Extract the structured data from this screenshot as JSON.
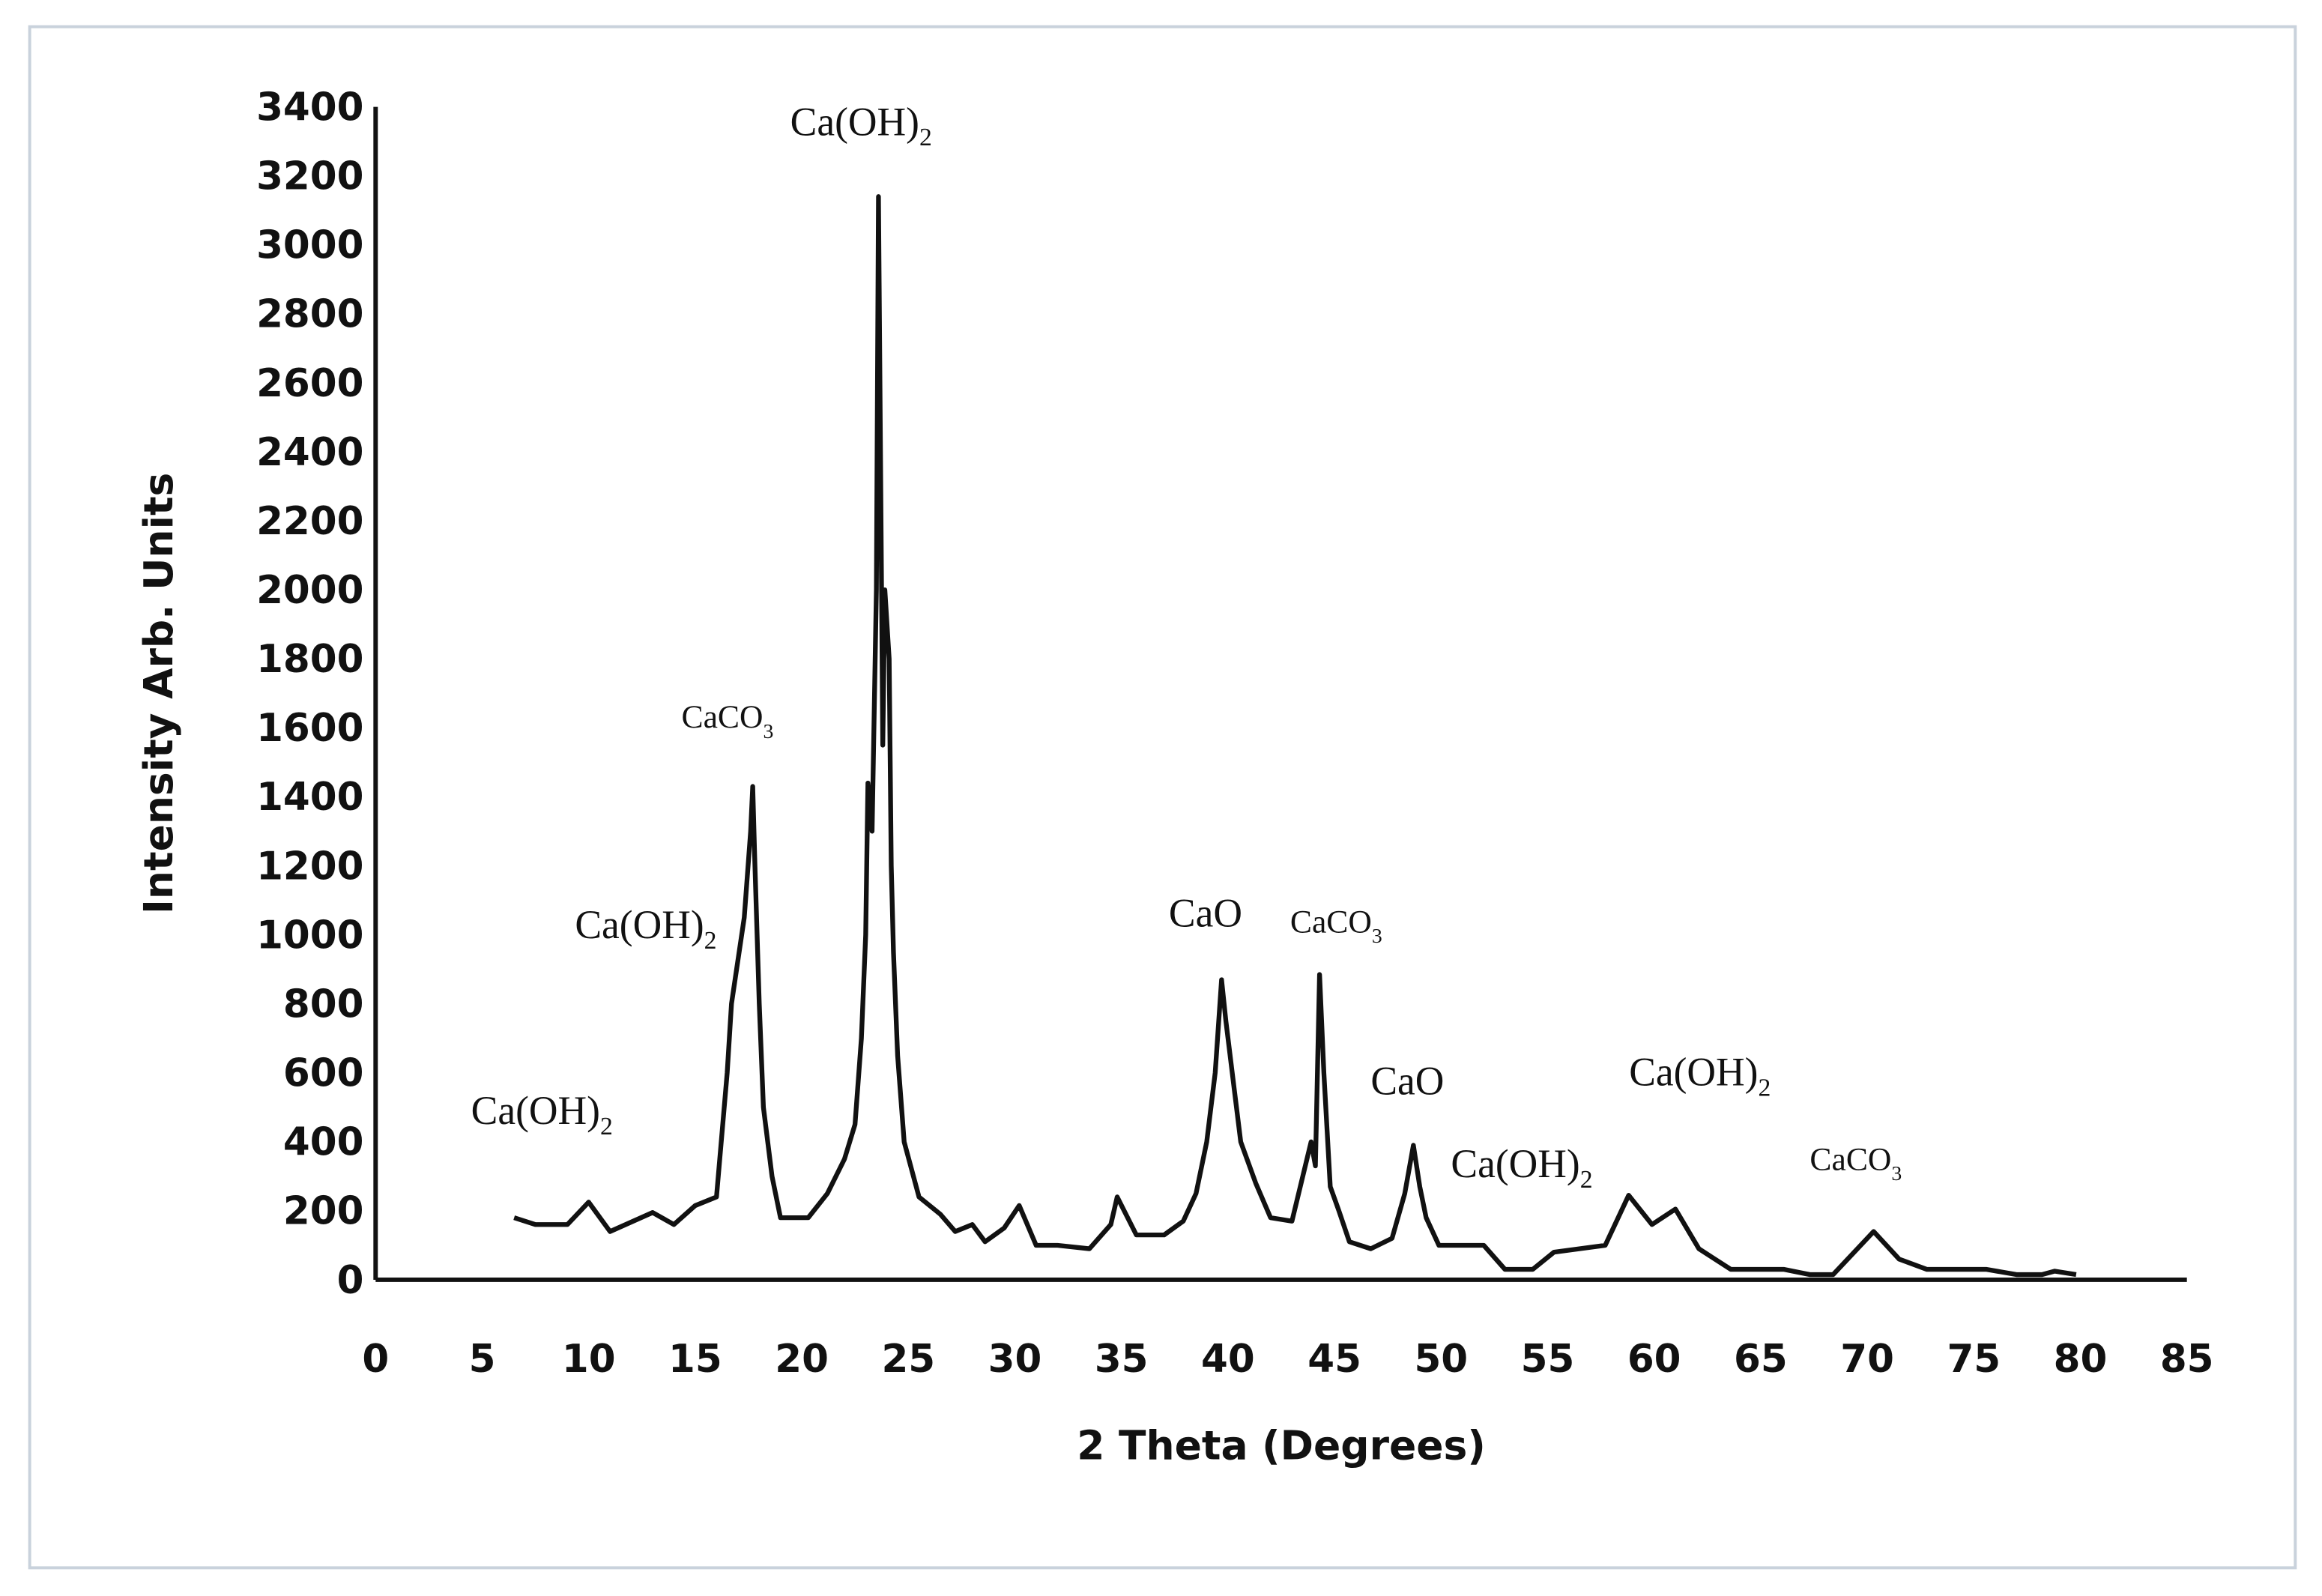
{
  "chart_data": {
    "type": "line",
    "xlabel": "2 Theta (Degrees)",
    "ylabel": "Intensity Arb. Units",
    "color": "#111111",
    "x": [
      6.5,
      7.5,
      9,
      10,
      11,
      13,
      14,
      15,
      16,
      16.5,
      16.7,
      17.3,
      17.6,
      17.7,
      17.8,
      18,
      18.2,
      18.6,
      19,
      20.3,
      21.2,
      22,
      22.5,
      22.8,
      23,
      23.1,
      23.3,
      23.5,
      23.6,
      23.8,
      23.9,
      24.1,
      24.2,
      24.3,
      24.5,
      24.8,
      25.5,
      26.5,
      27.2,
      28,
      28.6,
      29.5,
      30.2,
      31,
      32,
      33.5,
      34.5,
      34.8,
      35.7,
      37,
      37.9,
      38.5,
      39,
      39.4,
      39.7,
      39.9,
      40.3,
      40.6,
      41.3,
      42,
      43,
      43.9,
      44.1,
      44.3,
      44.5,
      44.8,
      45.2,
      45.7,
      46.7,
      47.7,
      48.3,
      48.7,
      49,
      49.3,
      49.9,
      52,
      53,
      54.3,
      55.3,
      57.7,
      58.8,
      59.9,
      61,
      62.1,
      63.6,
      66.1,
      67.3,
      68.4,
      70.3,
      71.5,
      72.8,
      75.6,
      77,
      78.2,
      78.8,
      79.8
    ],
    "values": [
      180,
      160,
      160,
      225,
      140,
      195,
      160,
      215,
      240,
      600,
      800,
      1050,
      1300,
      1430,
      1200,
      800,
      500,
      300,
      180,
      180,
      250,
      350,
      450,
      700,
      1000,
      1440,
      1300,
      2000,
      3140,
      1550,
      2000,
      1800,
      1200,
      950,
      650,
      400,
      240,
      190,
      140,
      160,
      110,
      150,
      215,
      100,
      100,
      90,
      160,
      240,
      130,
      130,
      170,
      250,
      400,
      600,
      870,
      750,
      550,
      400,
      280,
      180,
      170,
      400,
      330,
      885,
      600,
      270,
      200,
      110,
      90,
      120,
      250,
      390,
      270,
      180,
      100,
      100,
      30,
      30,
      80,
      100,
      245,
      160,
      205,
      90,
      30,
      30,
      15,
      15,
      140,
      60,
      30,
      30,
      15,
      15,
      25,
      15
    ],
    "xlim": [
      0,
      85
    ],
    "ylim": [
      0,
      3400
    ],
    "xticks": [
      0,
      5,
      10,
      15,
      20,
      25,
      30,
      35,
      40,
      45,
      50,
      55,
      60,
      65,
      70,
      75,
      80,
      85
    ],
    "yticks": [
      0,
      200,
      400,
      600,
      800,
      1000,
      1200,
      1400,
      1600,
      1800,
      2000,
      2200,
      2400,
      2600,
      2800,
      3000,
      3200,
      3400
    ],
    "annotations": [
      {
        "text": "Ca(OH)",
        "sub": "2"
      },
      {
        "text": "Ca(OH)",
        "sub": "2"
      },
      {
        "text": "CaCO",
        "sub": "3"
      },
      {
        "text": "Ca(OH)",
        "sub": "2"
      },
      {
        "text": "CaO"
      },
      {
        "text": "CaCO",
        "sub": "3"
      },
      {
        "text": "CaO"
      },
      {
        "text": "Ca(OH)",
        "sub": "2"
      },
      {
        "text": "Ca(OH)",
        "sub": "2"
      },
      {
        "text": "CaCO",
        "sub": "3"
      }
    ]
  }
}
